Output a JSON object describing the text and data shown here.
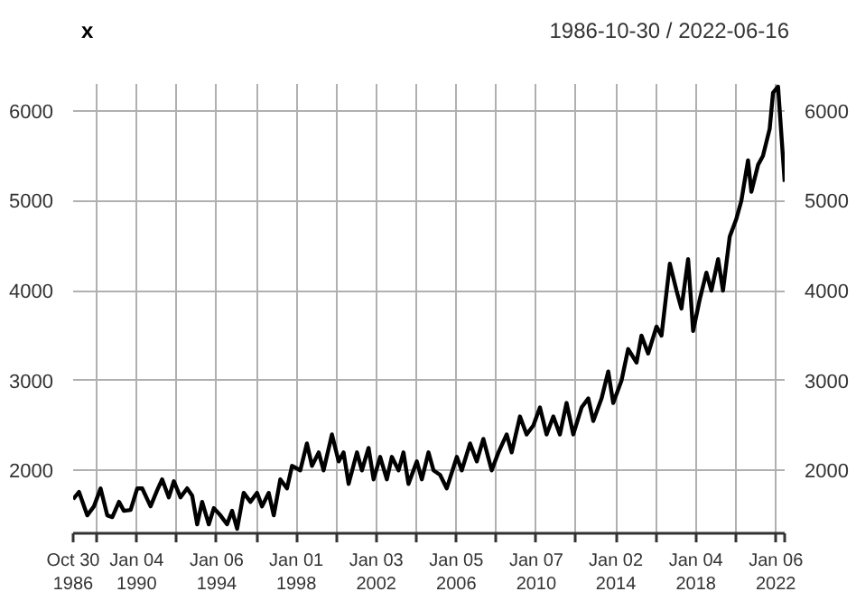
{
  "chart_data": {
    "type": "line",
    "title": "x",
    "subtitle": "1986-10-30 / 2022-06-16",
    "x": [
      "1986-10-30",
      "1987-02",
      "1987-07",
      "1987-11",
      "1988-03",
      "1988-07",
      "1988-10",
      "1989-02",
      "1989-05",
      "1989-09",
      "1990-01",
      "1990-04",
      "1990-09",
      "1991-01",
      "1991-04",
      "1991-08",
      "1991-11",
      "1992-03",
      "1992-07",
      "1992-10",
      "1993-01",
      "1993-04",
      "1993-08",
      "1993-11",
      "1994-03",
      "1994-07",
      "1994-10",
      "1995-01",
      "1995-05",
      "1995-09",
      "1996-01",
      "1996-04",
      "1996-08",
      "1996-11",
      "1997-03",
      "1997-07",
      "1997-10",
      "1998-03",
      "1998-07",
      "1998-10",
      "1999-02",
      "1999-05",
      "1999-10",
      "2000-02",
      "2000-05",
      "2000-08",
      "2001-01",
      "2001-04",
      "2001-08",
      "2001-11",
      "2002-03",
      "2002-07",
      "2002-10",
      "2003-02",
      "2003-05",
      "2003-08",
      "2004-01",
      "2004-04",
      "2004-08",
      "2004-11",
      "2005-03",
      "2005-07",
      "2006-01",
      "2006-04",
      "2006-09",
      "2007-01",
      "2007-05",
      "2007-10",
      "2008-02",
      "2008-07",
      "2008-10",
      "2009-03",
      "2009-07",
      "2009-11",
      "2010-03",
      "2010-07",
      "2010-11",
      "2011-03",
      "2011-07",
      "2011-11",
      "2012-04",
      "2012-08",
      "2012-11",
      "2013-04",
      "2013-08",
      "2013-11",
      "2014-04",
      "2014-08",
      "2015-01",
      "2015-04",
      "2015-08",
      "2016-01",
      "2016-04",
      "2016-09",
      "2017-01",
      "2017-04",
      "2017-08",
      "2017-11",
      "2018-03",
      "2018-07",
      "2018-10",
      "2019-02",
      "2019-05",
      "2019-09",
      "2020-01",
      "2020-04",
      "2020-08",
      "2020-10",
      "2021-02",
      "2021-05",
      "2021-09",
      "2021-11",
      "2022-02",
      "2022-06-16"
    ],
    "series": [
      {
        "color": "#000000",
        "values": [
          1680,
          1760,
          1500,
          1600,
          1800,
          1500,
          1480,
          1650,
          1550,
          1560,
          1800,
          1800,
          1600,
          1780,
          1900,
          1700,
          1880,
          1700,
          1800,
          1720,
          1400,
          1650,
          1400,
          1580,
          1500,
          1400,
          1550,
          1350,
          1750,
          1650,
          1750,
          1600,
          1750,
          1500,
          1900,
          1800,
          2050,
          2000,
          2300,
          2050,
          2200,
          2000,
          2400,
          2100,
          2200,
          1850,
          2200,
          2000,
          2250,
          1900,
          2150,
          1900,
          2150,
          2000,
          2200,
          1850,
          2100,
          1900,
          2200,
          2000,
          1950,
          1800,
          2150,
          2000,
          2300,
          2100,
          2350,
          2000,
          2200,
          2400,
          2200,
          2600,
          2400,
          2500,
          2700,
          2400,
          2600,
          2400,
          2750,
          2400,
          2700,
          2800,
          2550,
          2800,
          3100,
          2750,
          3000,
          3350,
          3200,
          3500,
          3300,
          3600,
          3500,
          4300,
          4000,
          3800,
          4350,
          3550,
          3900,
          4200,
          4000,
          4350,
          4000,
          4600,
          4800,
          5000,
          5450,
          5100,
          5400,
          5500,
          5800,
          6200,
          6270,
          5210
        ]
      }
    ],
    "xlim": [
      "1986-10-30",
      "2022-06-16"
    ],
    "xticks": [
      {
        "value": "1986-10-30",
        "label": "Oct 30\n1986"
      },
      {
        "value": "1988-01-04",
        "label": null
      },
      {
        "value": "1990-01-04",
        "label": "Jan 04\n1990"
      },
      {
        "value": "1992-01-06",
        "label": null
      },
      {
        "value": "1994-01-06",
        "label": "Jan 06\n1994"
      },
      {
        "value": "1996-01-04",
        "label": null
      },
      {
        "value": "1998-01-01",
        "label": "Jan 01\n1998"
      },
      {
        "value": "2000-01-06",
        "label": null
      },
      {
        "value": "2002-01-03",
        "label": "Jan 03\n2002"
      },
      {
        "value": "2004-01-01",
        "label": null
      },
      {
        "value": "2006-01-05",
        "label": "Jan 05\n2006"
      },
      {
        "value": "2008-01-03",
        "label": null
      },
      {
        "value": "2010-01-07",
        "label": "Jan 07\n2010"
      },
      {
        "value": "2012-01-05",
        "label": null
      },
      {
        "value": "2014-01-02",
        "label": "Jan 02\n2014"
      },
      {
        "value": "2016-01-07",
        "label": null
      },
      {
        "value": "2018-01-04",
        "label": "Jan 04\n2018"
      },
      {
        "value": "2020-01-02",
        "label": null
      },
      {
        "value": "2022-01-06",
        "label": "Jan 06\n2022"
      },
      {
        "value": "2022-06-16",
        "label": null
      }
    ],
    "ylim": [
      1300,
      6300
    ],
    "yticks": [
      2000,
      3000,
      4000,
      5000,
      6000
    ],
    "y2lim": [
      1300,
      6300
    ],
    "y2ticks": [
      2000,
      3000,
      4000,
      5000,
      6000
    ],
    "grid": true,
    "line_style": "solid"
  }
}
